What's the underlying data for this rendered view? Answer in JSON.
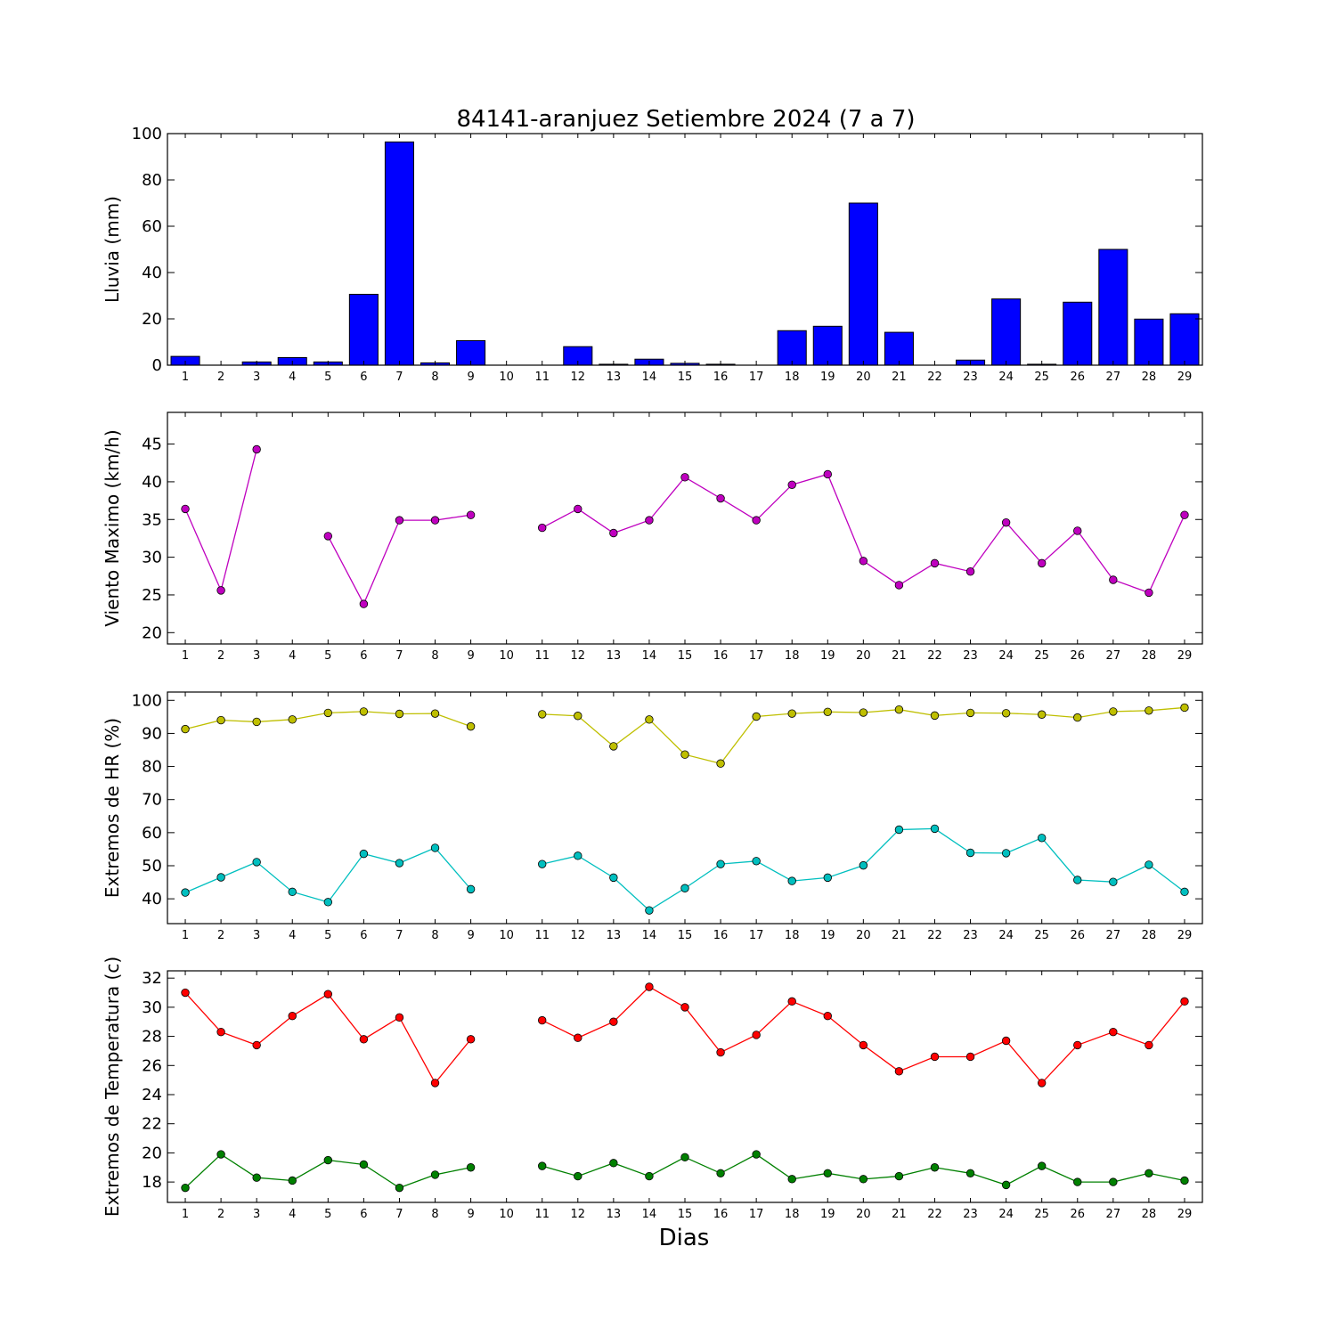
{
  "chart_data": [
    {
      "type": "bar",
      "title": "84141-aranjuez Setiembre 2024  (7 a 7)",
      "ylabel": "Lluvia (mm)",
      "xlabel": "",
      "ylim": [
        0,
        100
      ],
      "yticks": [
        "0",
        "20",
        "40",
        "60",
        "80",
        "100"
      ],
      "bar_color": "#0000ff",
      "categories": [
        "1",
        "2",
        "3",
        "4",
        "5",
        "6",
        "7",
        "8",
        "9",
        "10",
        "11",
        "12",
        "13",
        "14",
        "15",
        "16",
        "17",
        "18",
        "19",
        "20",
        "21",
        "22",
        "23",
        "24",
        "25",
        "26",
        "27",
        "28",
        "29"
      ],
      "values": [
        3.8,
        0,
        1.4,
        3.3,
        1.4,
        30.6,
        96.4,
        1.0,
        10.6,
        0,
        0,
        8.0,
        0.4,
        2.6,
        0.8,
        0.4,
        0,
        14.9,
        16.8,
        70.0,
        14.2,
        0,
        2.2,
        28.6,
        0.4,
        27.2,
        50.0,
        19.9,
        22.2
      ],
      "grid": false
    },
    {
      "type": "line",
      "ylabel": "Viento Maximo (km/h)",
      "xlabel": "",
      "ylim": [
        18.5,
        49.2
      ],
      "yticks": [
        "20",
        "25",
        "30",
        "35",
        "40",
        "45"
      ],
      "x": [
        "1",
        "2",
        "3",
        "4",
        "5",
        "6",
        "7",
        "8",
        "9",
        "10",
        "11",
        "12",
        "13",
        "14",
        "15",
        "16",
        "17",
        "18",
        "19",
        "20",
        "21",
        "22",
        "23",
        "24",
        "25",
        "26",
        "27",
        "28",
        "29"
      ],
      "series": [
        {
          "color": "#bf00bf",
          "values": [
            36.4,
            25.6,
            44.3,
            null,
            32.8,
            23.8,
            34.9,
            34.9,
            35.6,
            null,
            33.9,
            36.4,
            33.2,
            34.9,
            40.6,
            37.8,
            34.9,
            39.6,
            41.0,
            29.5,
            26.3,
            29.2,
            28.1,
            34.6,
            29.2,
            33.5,
            27.0,
            25.3,
            35.6
          ]
        }
      ],
      "grid": false
    },
    {
      "type": "line",
      "ylabel": "Extremos de HR (%)",
      "xlabel": "",
      "ylim": [
        32.5,
        102.5
      ],
      "yticks": [
        "40",
        "50",
        "60",
        "70",
        "80",
        "90",
        "100"
      ],
      "x": [
        "1",
        "2",
        "3",
        "4",
        "5",
        "6",
        "7",
        "8",
        "9",
        "10",
        "11",
        "12",
        "13",
        "14",
        "15",
        "16",
        "17",
        "18",
        "19",
        "20",
        "21",
        "22",
        "23",
        "24",
        "25",
        "26",
        "27",
        "28",
        "29"
      ],
      "series": [
        {
          "color": "#bfbf00",
          "values": [
            91.3,
            94.0,
            93.5,
            94.2,
            96.2,
            96.6,
            95.9,
            96.0,
            92.1,
            null,
            95.8,
            95.3,
            86.1,
            94.2,
            83.6,
            80.9,
            95.1,
            96.0,
            96.5,
            96.3,
            97.2,
            95.4,
            96.2,
            96.1,
            95.7,
            94.8,
            96.6,
            96.9,
            97.8
          ]
        },
        {
          "color": "#00bfbf",
          "values": [
            41.9,
            46.5,
            51.1,
            42.1,
            39.0,
            53.6,
            50.8,
            55.4,
            42.9,
            null,
            50.5,
            53.0,
            46.4,
            36.5,
            43.2,
            50.5,
            51.4,
            45.4,
            46.4,
            50.1,
            60.9,
            61.2,
            53.9,
            53.8,
            58.4,
            45.7,
            45.1,
            50.3,
            42.1
          ]
        }
      ],
      "grid": false
    },
    {
      "type": "line",
      "ylabel": "Extremos de Temperatura (c)",
      "xlabel": "Dias",
      "ylim": [
        16.6,
        32.5
      ],
      "yticks": [
        "18",
        "20",
        "22",
        "24",
        "26",
        "28",
        "30",
        "32"
      ],
      "x": [
        "1",
        "2",
        "3",
        "4",
        "5",
        "6",
        "7",
        "8",
        "9",
        "10",
        "11",
        "12",
        "13",
        "14",
        "15",
        "16",
        "17",
        "18",
        "19",
        "20",
        "21",
        "22",
        "23",
        "24",
        "25",
        "26",
        "27",
        "28",
        "29"
      ],
      "series": [
        {
          "color": "#ff0000",
          "values": [
            31.0,
            28.3,
            27.4,
            29.4,
            30.9,
            27.8,
            29.3,
            24.8,
            27.8,
            null,
            29.1,
            27.9,
            29.0,
            31.4,
            30.0,
            26.9,
            28.1,
            30.4,
            29.4,
            27.4,
            25.6,
            26.6,
            26.6,
            27.7,
            24.8,
            27.4,
            28.3,
            27.4,
            30.4
          ]
        },
        {
          "color": "#008000",
          "values": [
            17.6,
            19.9,
            18.3,
            18.1,
            19.5,
            19.2,
            17.6,
            18.5,
            19.0,
            null,
            19.1,
            18.4,
            19.3,
            18.4,
            19.7,
            18.6,
            19.9,
            18.2,
            18.6,
            18.2,
            18.4,
            19.0,
            18.6,
            17.8,
            19.1,
            18.0,
            18.0,
            18.6,
            18.1
          ]
        }
      ],
      "grid": false
    }
  ]
}
